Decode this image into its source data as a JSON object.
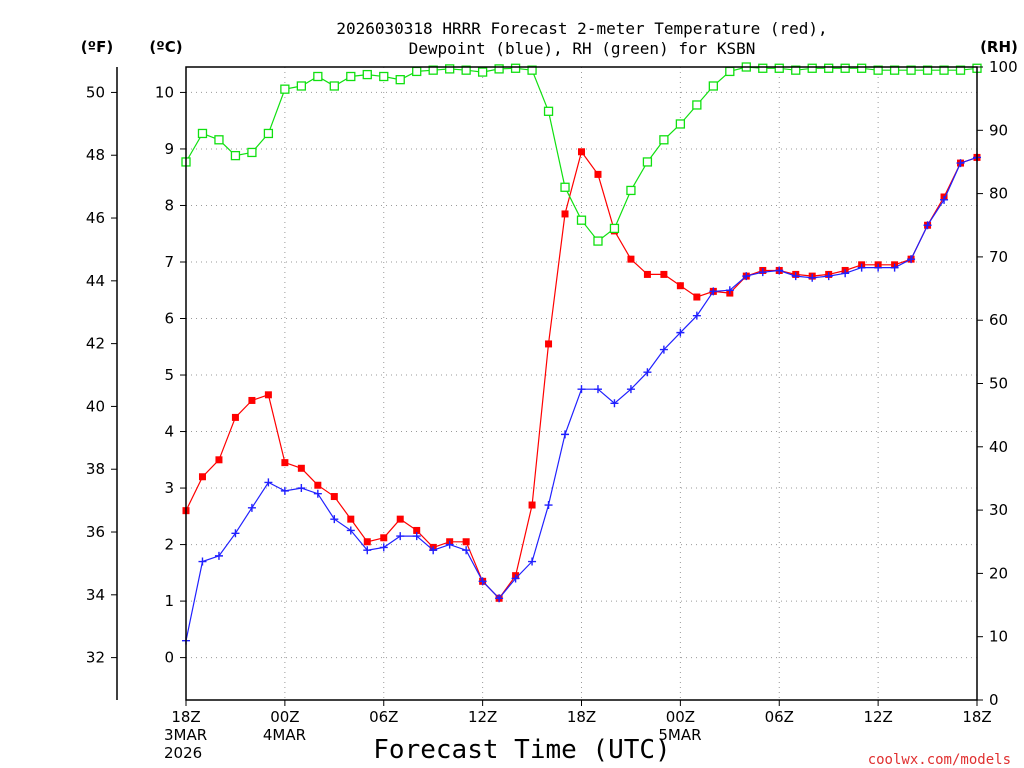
{
  "title_line1": "2026030318 HRRR Forecast 2-meter Temperature (red),",
  "title_line2": "Dewpoint (blue), RH (green) for KSBN",
  "unit_f": "(ºF)",
  "unit_c": "(ºC)",
  "unit_rh": "(RH)",
  "watermark": "coolwx.com/models",
  "chart_data": {
    "type": "line",
    "title": "2026030318 HRRR Forecast 2-meter Temperature (red), Dewpoint (blue), RH (green) for KSBN",
    "xlabel": "Forecast Time (UTC)",
    "x_unit": "forecast hour from 2026-03-03 18Z",
    "xlim": [
      0,
      48
    ],
    "x_ticks": [
      {
        "x": 0,
        "lines": [
          "18Z",
          "3MAR",
          "2026"
        ]
      },
      {
        "x": 6,
        "lines": [
          "00Z",
          "4MAR"
        ]
      },
      {
        "x": 12,
        "lines": [
          "06Z"
        ]
      },
      {
        "x": 18,
        "lines": [
          "12Z"
        ]
      },
      {
        "x": 24,
        "lines": [
          "18Z"
        ]
      },
      {
        "x": 30,
        "lines": [
          "00Z",
          "5MAR"
        ]
      },
      {
        "x": 36,
        "lines": [
          "06Z"
        ]
      },
      {
        "x": 42,
        "lines": [
          "12Z"
        ]
      },
      {
        "x": 48,
        "lines": [
          "18Z"
        ]
      }
    ],
    "y_celsius": {
      "label": "(ºC)",
      "ylim": [
        -0.75,
        10.45
      ],
      "ticks": [
        0,
        1,
        2,
        3,
        4,
        5,
        6,
        7,
        8,
        9,
        10
      ]
    },
    "y_fahrenheit": {
      "label": "(ºF)",
      "ticks": [
        32,
        34,
        36,
        38,
        40,
        42,
        44,
        46,
        48,
        50
      ]
    },
    "y_rh": {
      "label": "(RH)",
      "ylim": [
        0,
        100
      ],
      "ticks": [
        0,
        10,
        20,
        30,
        40,
        50,
        60,
        70,
        80,
        90,
        100
      ]
    },
    "grid": true,
    "series": [
      {
        "name": "Temperature",
        "axis": "celsius",
        "color": "#ff0000",
        "marker": "filled-square",
        "values": [
          2.6,
          3.2,
          3.5,
          4.25,
          4.55,
          4.65,
          3.45,
          3.35,
          3.05,
          2.85,
          2.45,
          2.05,
          2.12,
          2.45,
          2.25,
          1.95,
          2.05,
          2.05,
          1.35,
          1.05,
          1.45,
          2.7,
          5.55,
          7.85,
          8.95,
          8.55,
          7.55,
          7.05,
          6.78,
          6.78,
          6.58,
          6.38,
          6.48,
          6.45,
          6.75,
          6.85,
          6.85,
          6.78,
          6.75,
          6.78,
          6.85,
          6.95,
          6.95,
          6.95,
          7.05,
          7.65,
          8.15,
          8.75,
          8.85
        ]
      },
      {
        "name": "Dewpoint",
        "axis": "celsius",
        "color": "#2020ff",
        "marker": "plus",
        "values": [
          0.3,
          1.7,
          1.8,
          2.2,
          2.65,
          3.1,
          2.95,
          3.0,
          2.9,
          2.45,
          2.25,
          1.9,
          1.95,
          2.15,
          2.15,
          1.9,
          2.0,
          1.9,
          1.35,
          1.05,
          1.4,
          1.7,
          2.7,
          3.95,
          4.75,
          4.75,
          4.5,
          4.75,
          5.05,
          5.45,
          5.75,
          6.05,
          6.48,
          6.5,
          6.75,
          6.82,
          6.85,
          6.75,
          6.72,
          6.75,
          6.8,
          6.9,
          6.9,
          6.9,
          7.05,
          7.65,
          8.1,
          8.75,
          8.85
        ]
      },
      {
        "name": "RH",
        "axis": "rh",
        "color": "#10e010",
        "marker": "open-square",
        "values": [
          85,
          89.5,
          88.5,
          86,
          86.5,
          89.5,
          96.5,
          97,
          98.5,
          97,
          98.5,
          98.8,
          98.5,
          98,
          99.3,
          99.5,
          99.7,
          99.5,
          99.2,
          99.7,
          99.8,
          99.5,
          93,
          81,
          75.8,
          72.5,
          74.5,
          80.5,
          85,
          88.5,
          91,
          94,
          97,
          99.3,
          100,
          99.8,
          99.8,
          99.5,
          99.8,
          99.8,
          99.8,
          99.8,
          99.5,
          99.5,
          99.5,
          99.5,
          99.5,
          99.5,
          99.8
        ]
      }
    ]
  }
}
